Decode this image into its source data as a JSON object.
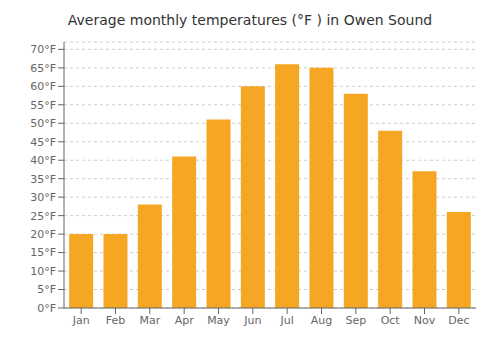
{
  "chart_data": {
    "type": "bar",
    "title": "Average monthly temperatures (°F ) in Owen Sound",
    "categories": [
      "Jan",
      "Feb",
      "Mar",
      "Apr",
      "May",
      "Jun",
      "Jul",
      "Aug",
      "Sep",
      "Oct",
      "Nov",
      "Dec"
    ],
    "values": [
      20,
      20,
      28,
      41,
      51,
      60,
      66,
      65,
      58,
      48,
      37,
      26
    ],
    "color": "#F5A623",
    "ylim": [
      0,
      72
    ],
    "yticks": [
      {
        "value": 0,
        "label": "0°F"
      },
      {
        "value": 5,
        "label": "5°F"
      },
      {
        "value": 10,
        "label": "10°F"
      },
      {
        "value": 15,
        "label": "15°F"
      },
      {
        "value": 20,
        "label": "20°F"
      },
      {
        "value": 25,
        "label": "25°F"
      },
      {
        "value": 30,
        "label": "30°F"
      },
      {
        "value": 35,
        "label": "35°F"
      },
      {
        "value": 40,
        "label": "40°F"
      },
      {
        "value": 45,
        "label": "45°F"
      },
      {
        "value": 50,
        "label": "50°F"
      },
      {
        "value": 55,
        "label": "55°F"
      },
      {
        "value": 60,
        "label": "60°F"
      },
      {
        "value": 65,
        "label": "65°F"
      },
      {
        "value": 70,
        "label": "70°F"
      }
    ],
    "grid": true
  }
}
